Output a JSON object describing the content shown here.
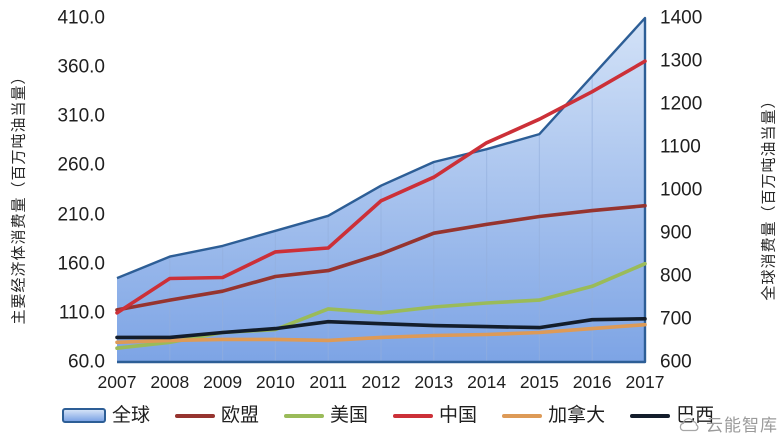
{
  "watermark": {
    "text": "云能智库"
  },
  "chart_data": {
    "type": "area+line",
    "x_categories": [
      "2007",
      "2008",
      "2009",
      "2010",
      "2011",
      "2012",
      "2013",
      "2014",
      "2015",
      "2016",
      "2017"
    ],
    "axes": {
      "left": {
        "label": "主要经济体消费量（百万吨油当量）",
        "min": 60,
        "max": 410,
        "ticks": [
          {
            "v": 410,
            "label": "410.0"
          },
          {
            "v": 360,
            "label": "360.0"
          },
          {
            "v": 310,
            "label": "310.0"
          },
          {
            "v": 260,
            "label": "260.0"
          },
          {
            "v": 210,
            "label": "210.0"
          },
          {
            "v": 160,
            "label": "160.0"
          },
          {
            "v": 110,
            "label": "110.0"
          },
          {
            "v": 60,
            "label": "60.0"
          }
        ]
      },
      "right": {
        "label": "全球消费量（百万吨油当量）",
        "min": 600,
        "max": 1400,
        "ticks": [
          {
            "v": 1400,
            "label": "1400"
          },
          {
            "v": 1300,
            "label": "1300"
          },
          {
            "v": 1200,
            "label": "1200"
          },
          {
            "v": 1100,
            "label": "1100"
          },
          {
            "v": 1000,
            "label": "1000"
          },
          {
            "v": 900,
            "label": "900"
          },
          {
            "v": 800,
            "label": "800"
          },
          {
            "v": 700,
            "label": "700"
          },
          {
            "v": 600,
            "label": "600"
          }
        ]
      }
    },
    "grid": {
      "vertical": true,
      "horizontal": false,
      "color": "#93aedd",
      "opacity": 0.55
    },
    "legend_position": "bottom",
    "series": [
      {
        "name": "全球",
        "type": "area",
        "axis": "right",
        "color": "#2d5e96",
        "fill_top": "#d3e2f7",
        "fill_bottom": "#7da4e5",
        "values": [
          795,
          845,
          870,
          905,
          940,
          1010,
          1065,
          1095,
          1130,
          1265,
          1400
        ]
      },
      {
        "name": "欧盟",
        "type": "line",
        "axis": "left",
        "color": "#96342f",
        "values": [
          113,
          123,
          132,
          147,
          153,
          170,
          191,
          200,
          208,
          214,
          219
        ]
      },
      {
        "name": "美国",
        "type": "line",
        "axis": "left",
        "color": "#9abb59",
        "values": [
          74,
          80,
          90,
          93,
          114,
          110,
          116,
          120,
          123,
          137,
          160
        ]
      },
      {
        "name": "中国",
        "type": "line",
        "axis": "left",
        "color": "#cc3038",
        "values": [
          110,
          145,
          146,
          172,
          176,
          224,
          248,
          283,
          307,
          335,
          366
        ]
      },
      {
        "name": "加拿大",
        "type": "line",
        "axis": "left",
        "color": "#dd9a57",
        "values": [
          80,
          82,
          83,
          83,
          82,
          85,
          87,
          88,
          90,
          94,
          98
        ]
      },
      {
        "name": "巴西",
        "type": "line",
        "axis": "left",
        "color": "#131d2b",
        "values": [
          85,
          85,
          90,
          94,
          101,
          99,
          97,
          96,
          95,
          103,
          104
        ]
      }
    ]
  }
}
